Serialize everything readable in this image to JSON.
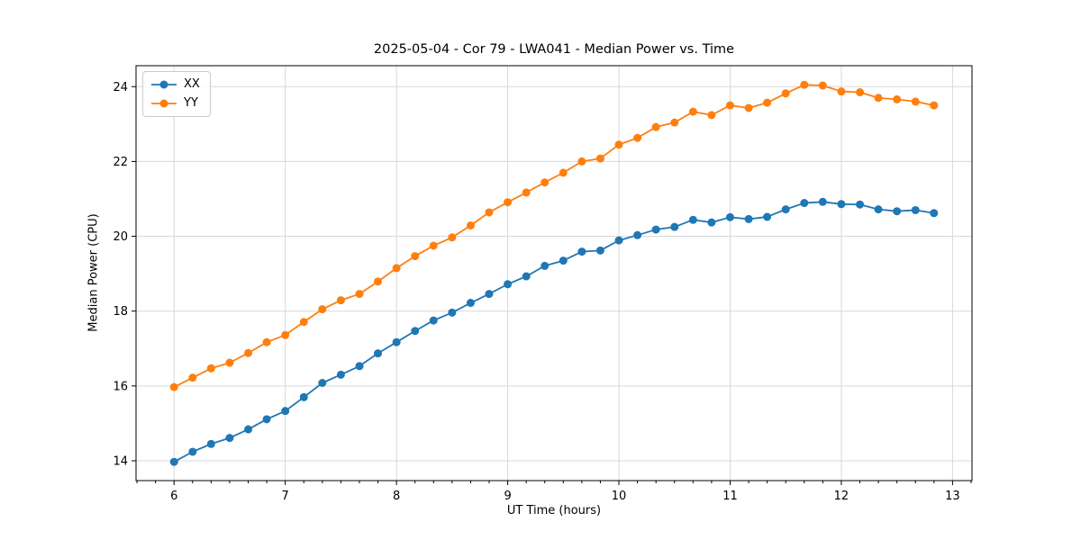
{
  "chart_data": {
    "type": "line",
    "title": "2025-05-04 - Cor 79 - LWA041 - Median Power vs. Time",
    "xlabel": "UT Time (hours)",
    "ylabel": "Median Power (CPU)",
    "xlim": [
      5.658,
      13.175
    ],
    "ylim": [
      13.47,
      24.56
    ],
    "x_ticks": [
      6,
      7,
      8,
      9,
      10,
      11,
      12,
      13
    ],
    "y_ticks": [
      14,
      16,
      18,
      20,
      22,
      24
    ],
    "x_minor_step": 0.1666667,
    "grid": true,
    "legend_position": "upper-left",
    "grid_color": "#d8d8d8",
    "spine_color": "#000000",
    "x": [
      6.0,
      6.167,
      6.333,
      6.5,
      6.667,
      6.833,
      7.0,
      7.167,
      7.333,
      7.5,
      7.667,
      7.833,
      8.0,
      8.167,
      8.333,
      8.5,
      8.667,
      8.833,
      9.0,
      9.167,
      9.333,
      9.5,
      9.667,
      9.833,
      10.0,
      10.167,
      10.333,
      10.5,
      10.667,
      10.833,
      11.0,
      11.167,
      11.333,
      11.5,
      11.667,
      11.833,
      12.0,
      12.167,
      12.333,
      12.5,
      12.667,
      12.833
    ],
    "series": [
      {
        "name": "XX",
        "color": "#1f77b4",
        "values": [
          13.97,
          14.24,
          14.45,
          14.61,
          14.84,
          15.11,
          15.33,
          15.7,
          16.08,
          16.3,
          16.53,
          16.87,
          17.17,
          17.47,
          17.75,
          17.96,
          18.22,
          18.46,
          18.72,
          18.93,
          19.21,
          19.35,
          19.59,
          19.62,
          19.89,
          20.03,
          20.18,
          20.25,
          20.44,
          20.37,
          20.51,
          20.46,
          20.52,
          20.72,
          20.89,
          20.92,
          20.86,
          20.85,
          20.72,
          20.67,
          20.7,
          20.62
        ]
      },
      {
        "name": "YY",
        "color": "#ff7f0e",
        "values": [
          15.97,
          16.22,
          16.47,
          16.62,
          16.88,
          17.17,
          17.36,
          17.71,
          18.05,
          18.29,
          18.46,
          18.79,
          19.15,
          19.47,
          19.75,
          19.97,
          20.29,
          20.64,
          20.91,
          21.17,
          21.44,
          21.7,
          22.0,
          22.08,
          22.45,
          22.63,
          22.92,
          23.04,
          23.33,
          23.24,
          23.5,
          23.43,
          23.57,
          23.82,
          24.05,
          24.03,
          23.87,
          23.85,
          23.7,
          23.66,
          23.6,
          23.5
        ]
      }
    ]
  }
}
